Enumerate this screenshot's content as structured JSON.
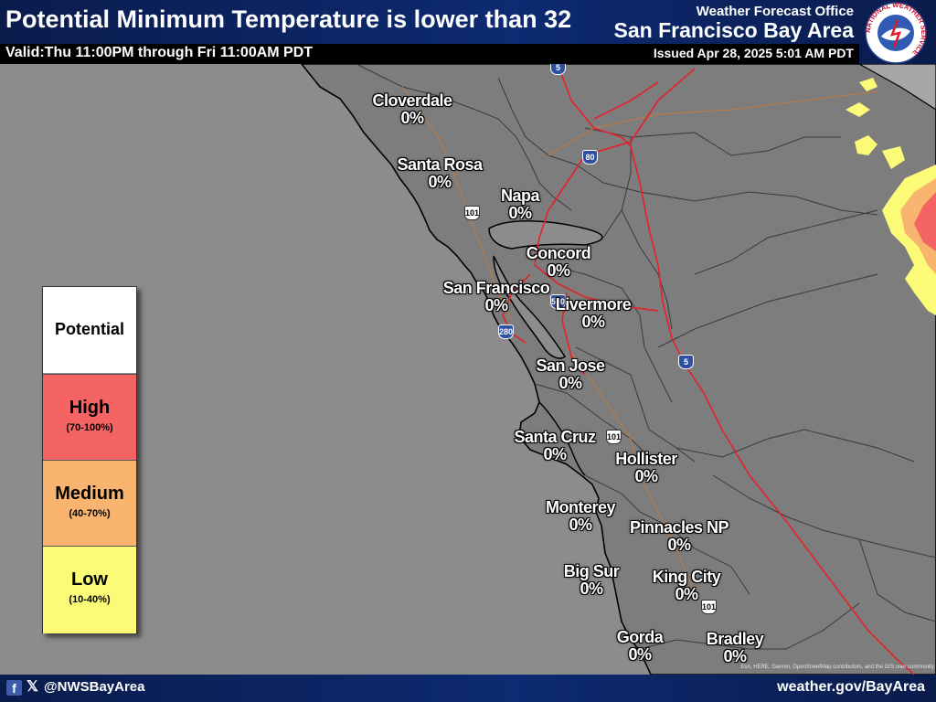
{
  "header": {
    "title": "Potential Minimum Temperature is lower than 32",
    "valid": "Valid:Thu 11:00PM through Fri 11:00AM PDT",
    "office": "Weather Forecast Office",
    "area": "San Francisco Bay Area",
    "issued": "Issued Apr 28, 2025 5:01 AM PDT",
    "logo_text": "NATIONAL WEATHER SERVICE"
  },
  "legend": {
    "potential": "Potential",
    "high": {
      "label": "High",
      "range": "(70-100%)",
      "color": "#f46464"
    },
    "medium": {
      "label": "Medium",
      "range": "(40-70%)",
      "color": "#f9b56f"
    },
    "low": {
      "label": "Low",
      "range": "(10-40%)",
      "color": "#fbfb78"
    }
  },
  "cities": [
    {
      "name": "Cloverdale",
      "value": "0%"
    },
    {
      "name": "Santa Rosa",
      "value": "0%"
    },
    {
      "name": "Napa",
      "value": "0%"
    },
    {
      "name": "Concord",
      "value": "0%"
    },
    {
      "name": "San Francisco",
      "value": "0%"
    },
    {
      "name": "Livermore",
      "value": "0%"
    },
    {
      "name": "San Jose",
      "value": "0%"
    },
    {
      "name": "Santa Cruz",
      "value": "0%"
    },
    {
      "name": "Hollister",
      "value": "0%"
    },
    {
      "name": "Monterey",
      "value": "0%"
    },
    {
      "name": "Pinnacles NP",
      "value": "0%"
    },
    {
      "name": "Big Sur",
      "value": "0%"
    },
    {
      "name": "King City",
      "value": "0%"
    },
    {
      "name": "Gorda",
      "value": "0%"
    },
    {
      "name": "Bradley",
      "value": "0%"
    }
  ],
  "shields": {
    "i5_north": "5",
    "i80": "80",
    "us101_north": "101",
    "i580": "580",
    "i280": "280",
    "i5_south": "5",
    "us101_mid": "101",
    "us101_south": "101"
  },
  "footer": {
    "facebook_icon": "f",
    "x_icon": "𝕏",
    "handle": "@NWSBayArea",
    "website": "weather.gov/BayArea",
    "attribution": "Esri, HERE, Garmin, OpenStreetMap contributors, and the GIS user community"
  },
  "colors": {
    "ocean": "#8c8c8c",
    "land": "#7d7d7d",
    "highway": "#e0262b",
    "header_bg": "#0d2a72"
  }
}
